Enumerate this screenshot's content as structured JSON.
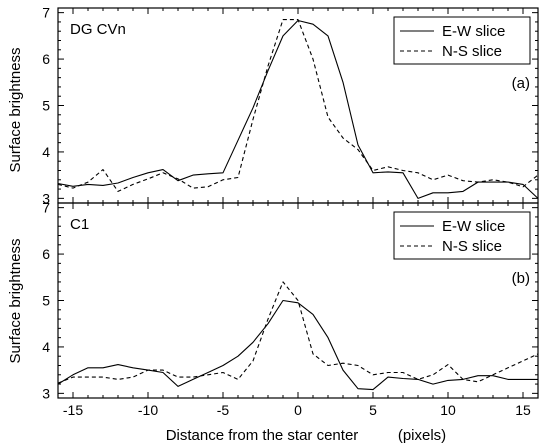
{
  "figure": {
    "xlabel": "Distance from the star center",
    "xlabel_unit": "(pixels)",
    "ylabel": "Surface brightness"
  },
  "chart_data": [
    {
      "type": "line",
      "panel_title": "DG CVn",
      "panel_tag": "(a)",
      "xlim": [
        -16,
        16
      ],
      "ylim": [
        2.9,
        7.1
      ],
      "xticks": [
        -15,
        -10,
        -5,
        0,
        5,
        10,
        15
      ],
      "yticks": [
        3,
        4,
        5,
        6,
        7
      ],
      "legend_position": "top-right",
      "series": [
        {
          "name": "E-W slice",
          "style": "solid",
          "x": [
            -16,
            -15,
            -14,
            -13,
            -12,
            -11,
            -10,
            -9,
            -8,
            -7,
            -6,
            -5,
            -4,
            -3,
            -2,
            -1,
            0,
            1,
            2,
            3,
            4,
            5,
            6,
            7,
            8,
            9,
            10,
            11,
            12,
            13,
            14,
            15,
            16
          ],
          "y": [
            3.32,
            3.26,
            3.3,
            3.28,
            3.33,
            3.45,
            3.55,
            3.62,
            3.38,
            3.5,
            3.53,
            3.55,
            4.25,
            4.95,
            5.75,
            6.5,
            6.83,
            6.75,
            6.5,
            5.5,
            4.15,
            3.55,
            3.57,
            3.55,
            3.0,
            3.12,
            3.12,
            3.15,
            3.35,
            3.35,
            3.35,
            3.3,
            3.0
          ]
        },
        {
          "name": "N-S slice",
          "style": "dashed",
          "x": [
            -16,
            -15,
            -14,
            -13,
            -12,
            -11,
            -10,
            -9,
            -8,
            -7,
            -6,
            -5,
            -4,
            -3,
            -2,
            -1,
            0,
            1,
            2,
            3,
            4,
            5,
            6,
            7,
            8,
            9,
            10,
            11,
            12,
            13,
            14,
            15,
            16
          ],
          "y": [
            3.3,
            3.22,
            3.35,
            3.62,
            3.15,
            3.3,
            3.42,
            3.55,
            3.42,
            3.22,
            3.25,
            3.4,
            3.45,
            4.7,
            5.85,
            6.85,
            6.85,
            6.0,
            4.75,
            4.3,
            4.05,
            3.6,
            3.68,
            3.6,
            3.55,
            3.4,
            3.5,
            3.38,
            3.35,
            3.4,
            3.35,
            3.25,
            3.5
          ]
        }
      ]
    },
    {
      "type": "line",
      "panel_title": "C1",
      "panel_tag": "(b)",
      "xlim": [
        -16,
        16
      ],
      "ylim": [
        2.9,
        7.1
      ],
      "xticks": [
        -15,
        -10,
        -5,
        0,
        5,
        10,
        15
      ],
      "yticks": [
        3,
        4,
        5,
        6,
        7
      ],
      "legend_position": "top-right",
      "series": [
        {
          "name": "E-W slice",
          "style": "solid",
          "x": [
            -16,
            -15,
            -14,
            -13,
            -12,
            -11,
            -10,
            -9,
            -8,
            -7,
            -6,
            -5,
            -4,
            -3,
            -2,
            -1,
            0,
            1,
            2,
            3,
            4,
            5,
            6,
            7,
            8,
            9,
            10,
            11,
            12,
            13,
            14,
            15,
            16
          ],
          "y": [
            3.2,
            3.4,
            3.55,
            3.55,
            3.62,
            3.55,
            3.5,
            3.45,
            3.15,
            3.3,
            3.45,
            3.6,
            3.8,
            4.1,
            4.5,
            5.0,
            4.95,
            4.7,
            4.2,
            3.5,
            3.1,
            3.08,
            3.35,
            3.32,
            3.3,
            3.2,
            3.28,
            3.3,
            3.38,
            3.38,
            3.3,
            3.3,
            3.3
          ]
        },
        {
          "name": "N-S slice",
          "style": "dashed",
          "x": [
            -16,
            -15,
            -14,
            -13,
            -12,
            -11,
            -10,
            -9,
            -8,
            -7,
            -6,
            -5,
            -4,
            -3,
            -2,
            -1,
            0,
            1,
            2,
            3,
            4,
            5,
            6,
            7,
            8,
            9,
            10,
            11,
            12,
            13,
            14,
            15,
            16
          ],
          "y": [
            3.22,
            3.35,
            3.35,
            3.35,
            3.3,
            3.35,
            3.5,
            3.5,
            3.35,
            3.35,
            3.4,
            3.45,
            3.3,
            3.7,
            4.6,
            5.4,
            5.0,
            3.85,
            3.6,
            3.65,
            3.6,
            3.4,
            3.45,
            3.45,
            3.3,
            3.4,
            3.62,
            3.3,
            3.25,
            3.4,
            3.55,
            3.7,
            3.85
          ]
        }
      ]
    }
  ]
}
